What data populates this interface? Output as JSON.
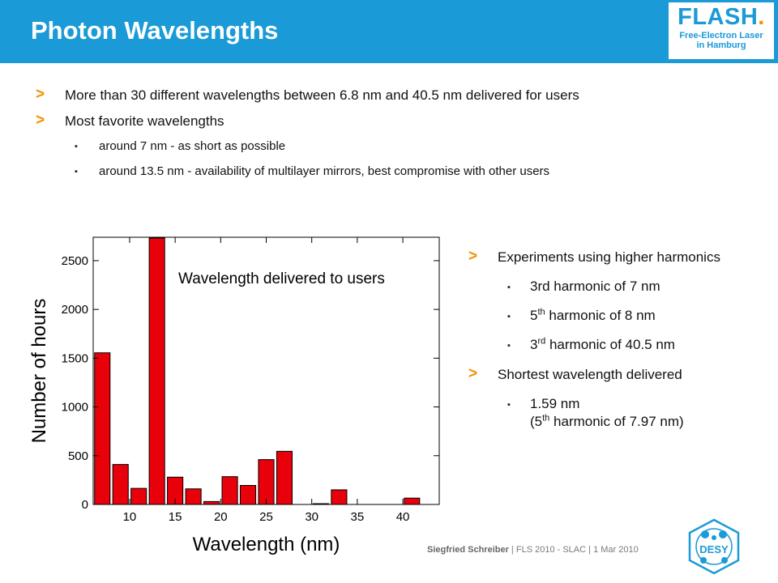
{
  "header": {
    "title": "Photon Wavelengths",
    "logo_main": "FLASH",
    "logo_dot": ".",
    "logo_sub1": "Free-Electron Laser",
    "logo_sub2": "in Hamburg"
  },
  "bullets": {
    "b1": "More than 30 different wavelengths between 6.8 nm and 40.5 nm delivered for users",
    "b2": "Most favorite wavelengths",
    "b2_sub1": "around 7 nm - as short as possible",
    "b2_sub2": "around 13.5 nm - availability of multilayer mirrors, best compromise with other users"
  },
  "right": {
    "r1": "Experiments using higher harmonics",
    "r1_sub1": "3rd harmonic of 7 nm",
    "r1_sub2_pre": "5",
    "r1_sub2_sup": "th",
    "r1_sub2_post": " harmonic of 8 nm",
    "r1_sub3_pre": "3",
    "r1_sub3_sup": "rd",
    "r1_sub3_post": " harmonic of 40.5 nm",
    "r2": "Shortest wavelength delivered",
    "r2_sub1_line1": "1.59 nm",
    "r2_sub1_pre": "(5",
    "r2_sub1_sup": "th",
    "r2_sub1_post": " harmonic of 7.97 nm)"
  },
  "footer": {
    "author": "Siegfried Schreiber",
    "sep1": " | ",
    "conf": "FLS 2010 - SLAC",
    "sep2": " | ",
    "date": "1 Mar 2010"
  },
  "desy_logo": "DESY",
  "colors": {
    "header_blue": "#1a9ad6",
    "accent_orange": "#f39200",
    "bar_red": "#e8000b"
  },
  "chart_data": {
    "type": "bar",
    "annotation": "Wavelength delivered to users",
    "xlabel": "Wavelength (nm)",
    "ylabel": "Number of hours",
    "xlim": [
      6,
      44
    ],
    "ylim": [
      0,
      2740
    ],
    "xticks": [
      10,
      15,
      20,
      25,
      30,
      35,
      40
    ],
    "yticks": [
      0,
      500,
      1000,
      1500,
      2000,
      2500
    ],
    "bar_width": 1.7,
    "bars": [
      {
        "x": 7,
        "value": 1555
      },
      {
        "x": 9,
        "value": 410
      },
      {
        "x": 11,
        "value": 165
      },
      {
        "x": 13,
        "value": 2770
      },
      {
        "x": 15,
        "value": 280
      },
      {
        "x": 17,
        "value": 160
      },
      {
        "x": 19,
        "value": 30
      },
      {
        "x": 21,
        "value": 285
      },
      {
        "x": 23,
        "value": 195
      },
      {
        "x": 25,
        "value": 460
      },
      {
        "x": 27,
        "value": 545
      },
      {
        "x": 31,
        "value": 8
      },
      {
        "x": 33,
        "value": 150
      },
      {
        "x": 41,
        "value": 65
      }
    ]
  }
}
